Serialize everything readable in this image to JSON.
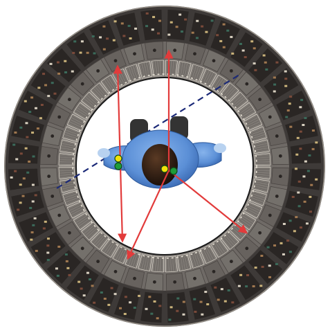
{
  "figure": {
    "background_color": "#ffffff",
    "detector_ring": {
      "outer_frame_color": "#3e3a38",
      "module_face_color": "#6f6a66",
      "inner_ring_color": "#8a8580",
      "electronics_colors": [
        "#c9b27a",
        "#7a4a3a",
        "#d8d0c0",
        "#3b6a5a",
        "#a07850"
      ],
      "block_count": 36,
      "inner_block_count": 48,
      "gap_lines_color": "#e8e2d6"
    },
    "bore": {
      "color": "#ffffff",
      "outline_color": "#1a1a1a"
    },
    "patient": {
      "body_color": "#5b8fd6",
      "body_shade_color": "#3f6fb8",
      "head_color": "#2a1a12",
      "hair_highlight_color": "#5a3a24",
      "feet_color": "#333333",
      "hand_color": "#b8d2f0"
    },
    "source_markers": {
      "yellow_color": "#f2e20a",
      "green_color": "#1f9c3a",
      "outline_color": "#0f4a1a"
    },
    "lines": {
      "lor_color": "#e23b3b",
      "axis_dash_color": "#1c2a78"
    }
  }
}
